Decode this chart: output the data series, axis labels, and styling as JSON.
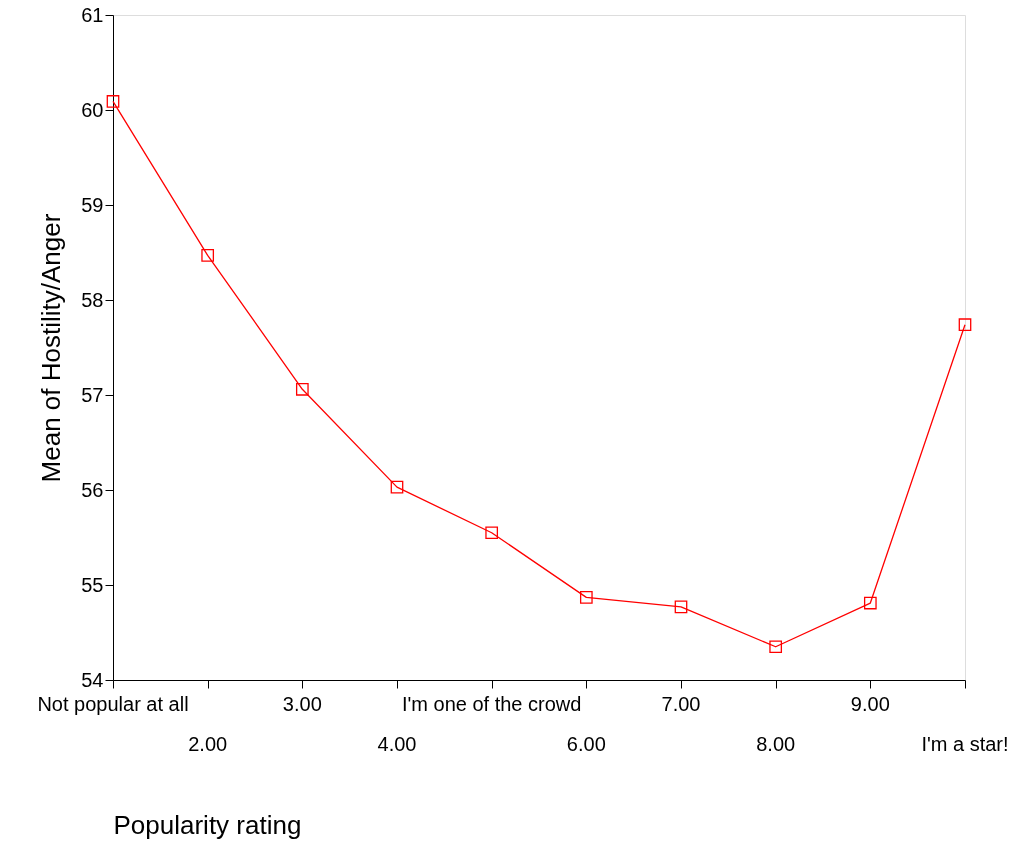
{
  "chart_data": {
    "type": "line",
    "xlabel": "Popularity rating",
    "ylabel": "Mean of Hostility/Anger",
    "categories": [
      "Not popular at all",
      "2.00",
      "3.00",
      "4.00",
      "I'm one of the crowd",
      "6.00",
      "7.00",
      "8.00",
      "9.00",
      "I'm a star!"
    ],
    "series": [
      {
        "color": "#ff0000",
        "values": [
          60.09,
          58.47,
          57.06,
          56.03,
          55.55,
          54.87,
          54.77,
          54.35,
          54.81,
          57.74
        ]
      }
    ],
    "ylim": [
      54,
      61
    ],
    "yticks": [
      54,
      55,
      56,
      57,
      58,
      59,
      60,
      61
    ],
    "marker": "square",
    "line_style": "solid",
    "grid": false,
    "legend": false
  }
}
